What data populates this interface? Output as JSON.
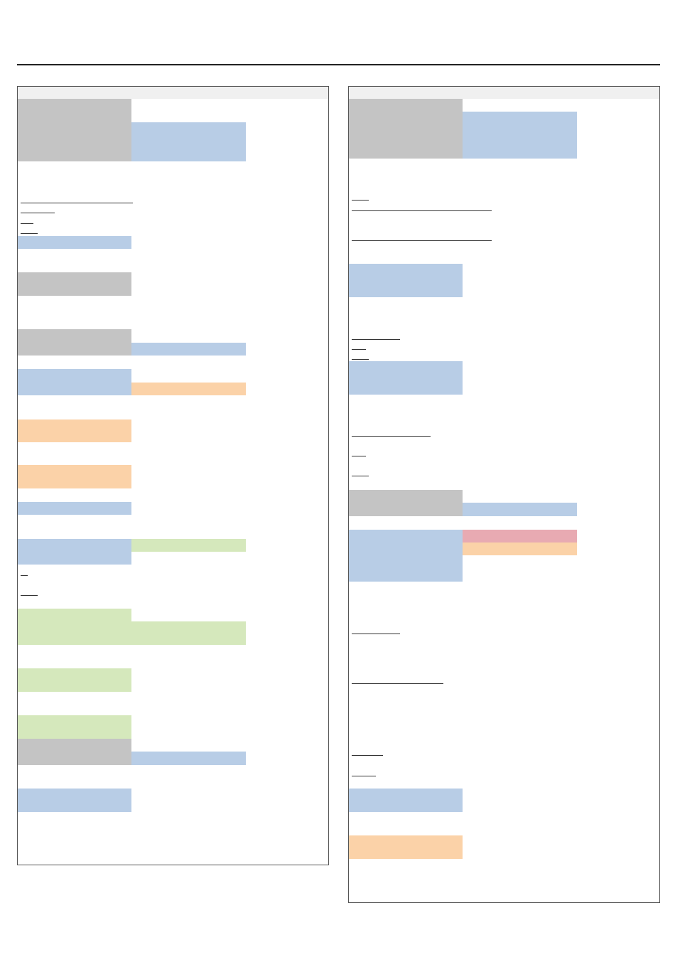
{
  "document": {
    "columns": [
      "left",
      "right"
    ],
    "colors": {
      "gray": "#c4c4c4",
      "blue": "#b8cde6",
      "orange": "#fbd2a8",
      "green": "#d5e8bc",
      "red": "#e8aab2",
      "border": "#555555"
    }
  }
}
